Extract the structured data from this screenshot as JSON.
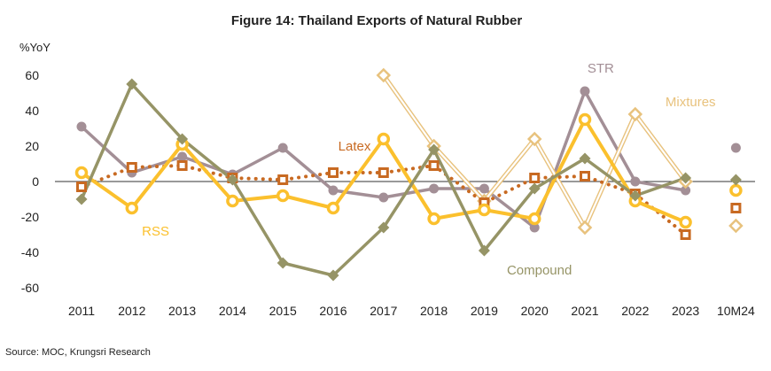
{
  "source_note": "Source: MOC, Krungsri Research",
  "chart_data": {
    "type": "line",
    "title": "Figure 14: Thailand Exports of Natural Rubber",
    "ylabel": "%YoY",
    "xlabel": "",
    "ylim": [
      -60,
      60
    ],
    "yticks": [
      60,
      40,
      20,
      0,
      -20,
      -40,
      -60
    ],
    "categories": [
      "2011",
      "2012",
      "2013",
      "2014",
      "2015",
      "2016",
      "2017",
      "2018",
      "2019",
      "2020",
      "2021",
      "2022",
      "2023",
      "10M24"
    ],
    "grid": false,
    "legend": "labels placed next to series",
    "series": [
      {
        "name": "STR",
        "color": "#a38f96",
        "marker": "circle-filled",
        "line": "solid",
        "values": [
          31,
          5,
          14,
          4,
          19,
          -5,
          -9,
          -4,
          -4,
          -26,
          51,
          0,
          -5,
          19
        ]
      },
      {
        "name": "Mixtures",
        "color": "#e8c27d",
        "marker": "diamond-open",
        "line": "double",
        "values": [
          null,
          null,
          null,
          null,
          null,
          null,
          60,
          20,
          -11,
          24,
          -26,
          38,
          0,
          -25
        ]
      },
      {
        "name": "Latex",
        "color": "#c86a22",
        "marker": "square-open",
        "line": "dotted",
        "values": [
          -3,
          8,
          9,
          2,
          1,
          5,
          5,
          9,
          -12,
          2,
          3,
          -7,
          -30,
          -15
        ]
      },
      {
        "name": "RSS",
        "color": "#fbc02d",
        "marker": "circle-open",
        "line": "solid",
        "values": [
          5,
          -15,
          21,
          -11,
          -8,
          -15,
          24,
          -21,
          -16,
          -21,
          35,
          -11,
          -23,
          -5
        ]
      },
      {
        "name": "Compound",
        "color": "#969466",
        "marker": "diamond-filled",
        "line": "solid",
        "values": [
          -10,
          55,
          24,
          1,
          -46,
          -53,
          -26,
          18,
          -39,
          -4,
          13,
          -8,
          2,
          1
        ]
      }
    ]
  }
}
